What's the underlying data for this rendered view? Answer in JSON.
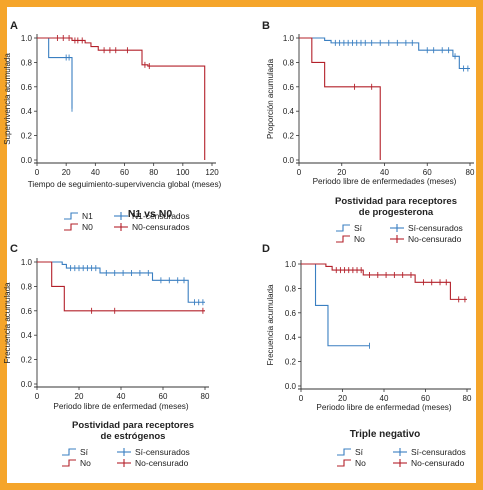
{
  "colors": {
    "frame": "#f5a52a",
    "blue": "#3a7fc1",
    "red": "#b3202a",
    "axis": "#333333"
  },
  "chart_data": [
    {
      "panel": "A",
      "type": "line",
      "title": "N1 vs N0",
      "xlabel": "Tiempo de seguimiento-supervivencia global (meses)",
      "ylabel": "Supervivencia acumulada",
      "xlim": [
        0,
        120
      ],
      "ylim": [
        0,
        1.0
      ],
      "xticks": [
        0,
        20,
        40,
        60,
        80,
        100,
        120
      ],
      "yticks": [
        0.0,
        0.2,
        0.4,
        0.6,
        0.8,
        1.0
      ],
      "series": [
        {
          "name": "N1",
          "color": "#3a7fc1",
          "steps": [
            [
              0,
              1.0
            ],
            [
              8,
              1.0
            ],
            [
              8,
              0.84
            ],
            [
              24,
              0.84
            ],
            [
              24,
              0.42
            ]
          ],
          "censored": [
            [
              20,
              0.84
            ],
            [
              22,
              0.84
            ],
            [
              24,
              0.42
            ]
          ]
        },
        {
          "name": "N0",
          "color": "#b3202a",
          "steps": [
            [
              0,
              1.0
            ],
            [
              24,
              1.0
            ],
            [
              24,
              0.98
            ],
            [
              33,
              0.98
            ],
            [
              33,
              0.96
            ],
            [
              37,
              0.96
            ],
            [
              37,
              0.93
            ],
            [
              42,
              0.93
            ],
            [
              42,
              0.9
            ],
            [
              72,
              0.9
            ],
            [
              72,
              0.78
            ],
            [
              76,
              0.78
            ],
            [
              76,
              0.77
            ],
            [
              115,
              0.77
            ],
            [
              115,
              0.0
            ]
          ],
          "censored": [
            [
              14,
              1.0
            ],
            [
              18,
              1.0
            ],
            [
              22,
              1.0
            ],
            [
              26,
              0.98
            ],
            [
              28,
              0.98
            ],
            [
              31,
              0.98
            ],
            [
              46,
              0.9
            ],
            [
              50,
              0.9
            ],
            [
              54,
              0.9
            ],
            [
              62,
              0.9
            ],
            [
              74,
              0.78
            ],
            [
              77,
              0.77
            ]
          ]
        }
      ],
      "legend": [
        {
          "label": "N1",
          "kind": "line",
          "color": "#3a7fc1"
        },
        {
          "label": "N1-censurados",
          "kind": "cross",
          "color": "#3a7fc1"
        },
        {
          "label": "N0",
          "kind": "line",
          "color": "#b3202a"
        },
        {
          "label": "N0-censurados",
          "kind": "cross",
          "color": "#b3202a"
        }
      ]
    },
    {
      "panel": "B",
      "type": "line",
      "title": "Postividad para receptores de progesterona",
      "xlabel": "Periodo libre de enfermedades (meses)",
      "ylabel": "Proporción acumulada",
      "xlim": [
        0,
        80
      ],
      "ylim": [
        0,
        1.0
      ],
      "xticks": [
        0,
        20,
        40,
        60,
        80
      ],
      "yticks": [
        0.0,
        0.2,
        0.4,
        0.6,
        0.8,
        1.0
      ],
      "series": [
        {
          "name": "Sí",
          "color": "#3a7fc1",
          "steps": [
            [
              0,
              1.0
            ],
            [
              12,
              1.0
            ],
            [
              12,
              0.98
            ],
            [
              15,
              0.98
            ],
            [
              15,
              0.96
            ],
            [
              56,
              0.96
            ],
            [
              56,
              0.9
            ],
            [
              72,
              0.9
            ],
            [
              72,
              0.85
            ],
            [
              75,
              0.85
            ],
            [
              75,
              0.75
            ],
            [
              80,
              0.75
            ]
          ],
          "censored": [
            [
              17,
              0.96
            ],
            [
              19,
              0.96
            ],
            [
              21,
              0.96
            ],
            [
              23,
              0.96
            ],
            [
              25,
              0.96
            ],
            [
              27,
              0.96
            ],
            [
              29,
              0.96
            ],
            [
              31,
              0.96
            ],
            [
              34,
              0.96
            ],
            [
              38,
              0.96
            ],
            [
              42,
              0.96
            ],
            [
              46,
              0.96
            ],
            [
              50,
              0.96
            ],
            [
              53,
              0.96
            ],
            [
              60,
              0.9
            ],
            [
              63,
              0.9
            ],
            [
              67,
              0.9
            ],
            [
              70,
              0.9
            ],
            [
              73,
              0.85
            ],
            [
              77,
              0.75
            ],
            [
              79,
              0.75
            ]
          ]
        },
        {
          "name": "No",
          "color": "#b3202a",
          "steps": [
            [
              0,
              1.0
            ],
            [
              6,
              1.0
            ],
            [
              6,
              0.8
            ],
            [
              12,
              0.8
            ],
            [
              12,
              0.6
            ],
            [
              38,
              0.6
            ],
            [
              38,
              0.0
            ]
          ],
          "censored": [
            [
              26,
              0.6
            ],
            [
              34,
              0.6
            ]
          ]
        }
      ],
      "legend": [
        {
          "label": "Sí",
          "kind": "line",
          "color": "#3a7fc1"
        },
        {
          "label": "Sí-censurados",
          "kind": "cross",
          "color": "#3a7fc1"
        },
        {
          "label": "No",
          "kind": "line",
          "color": "#b3202a"
        },
        {
          "label": "No-censurado",
          "kind": "cross",
          "color": "#b3202a"
        }
      ]
    },
    {
      "panel": "C",
      "type": "line",
      "title": "Postividad para receptores de estrógenos",
      "xlabel": "Periodo libre de enfermedad (meses)",
      "ylabel": "Frecuencia acumulada",
      "xlim": [
        0,
        80
      ],
      "ylim": [
        0,
        1.0
      ],
      "xticks": [
        0,
        20,
        40,
        60,
        80
      ],
      "yticks": [
        0.0,
        0.2,
        0.4,
        0.6,
        0.8,
        1.0
      ],
      "series": [
        {
          "name": "Sí",
          "color": "#3a7fc1",
          "steps": [
            [
              0,
              1.0
            ],
            [
              12,
              1.0
            ],
            [
              12,
              0.98
            ],
            [
              14,
              0.98
            ],
            [
              14,
              0.95
            ],
            [
              30,
              0.95
            ],
            [
              30,
              0.91
            ],
            [
              55,
              0.91
            ],
            [
              55,
              0.85
            ],
            [
              72,
              0.85
            ],
            [
              72,
              0.67
            ],
            [
              80,
              0.67
            ]
          ],
          "censored": [
            [
              16,
              0.95
            ],
            [
              18,
              0.95
            ],
            [
              20,
              0.95
            ],
            [
              22,
              0.95
            ],
            [
              24,
              0.95
            ],
            [
              26,
              0.95
            ],
            [
              28,
              0.95
            ],
            [
              33,
              0.91
            ],
            [
              37,
              0.91
            ],
            [
              41,
              0.91
            ],
            [
              45,
              0.91
            ],
            [
              49,
              0.91
            ],
            [
              53,
              0.91
            ],
            [
              59,
              0.85
            ],
            [
              63,
              0.85
            ],
            [
              67,
              0.85
            ],
            [
              70,
              0.85
            ],
            [
              75,
              0.67
            ],
            [
              77,
              0.67
            ],
            [
              79,
              0.67
            ]
          ]
        },
        {
          "name": "No",
          "color": "#b3202a",
          "steps": [
            [
              0,
              1.0
            ],
            [
              7,
              1.0
            ],
            [
              7,
              0.8
            ],
            [
              13,
              0.8
            ],
            [
              13,
              0.6
            ],
            [
              80,
              0.6
            ]
          ],
          "censored": [
            [
              26,
              0.6
            ],
            [
              37,
              0.6
            ],
            [
              79,
              0.6
            ]
          ]
        }
      ],
      "legend": [
        {
          "label": "Sí",
          "kind": "line",
          "color": "#3a7fc1"
        },
        {
          "label": "Sí-censurados",
          "kind": "cross",
          "color": "#3a7fc1"
        },
        {
          "label": "No",
          "kind": "line",
          "color": "#b3202a"
        },
        {
          "label": "No-censurado",
          "kind": "cross",
          "color": "#b3202a"
        }
      ]
    },
    {
      "panel": "D",
      "type": "line",
      "title": "Triple negativo",
      "xlabel": "Periodo libre de enfermedad (meses)",
      "ylabel": "Frecuencia acumulada",
      "xlim": [
        0,
        80
      ],
      "ylim": [
        0,
        1.0
      ],
      "xticks": [
        0,
        20,
        40,
        60,
        80
      ],
      "yticks": [
        0.0,
        0.2,
        0.4,
        0.6,
        0.8,
        1.0
      ],
      "series": [
        {
          "name": "Sí",
          "color": "#3a7fc1",
          "steps": [
            [
              0,
              1.0
            ],
            [
              7,
              1.0
            ],
            [
              7,
              0.66
            ],
            [
              13,
              0.66
            ],
            [
              13,
              0.33
            ],
            [
              33,
              0.33
            ]
          ],
          "censored": [
            [
              33,
              0.33
            ]
          ]
        },
        {
          "name": "No",
          "color": "#b3202a",
          "steps": [
            [
              0,
              1.0
            ],
            [
              12,
              1.0
            ],
            [
              12,
              0.98
            ],
            [
              15,
              0.98
            ],
            [
              15,
              0.95
            ],
            [
              30,
              0.95
            ],
            [
              30,
              0.91
            ],
            [
              55,
              0.91
            ],
            [
              55,
              0.85
            ],
            [
              72,
              0.85
            ],
            [
              72,
              0.71
            ],
            [
              80,
              0.71
            ]
          ],
          "censored": [
            [
              17,
              0.95
            ],
            [
              19,
              0.95
            ],
            [
              21,
              0.95
            ],
            [
              23,
              0.95
            ],
            [
              25,
              0.95
            ],
            [
              27,
              0.95
            ],
            [
              29,
              0.95
            ],
            [
              33,
              0.91
            ],
            [
              37,
              0.91
            ],
            [
              41,
              0.91
            ],
            [
              45,
              0.91
            ],
            [
              49,
              0.91
            ],
            [
              53,
              0.91
            ],
            [
              59,
              0.85
            ],
            [
              63,
              0.85
            ],
            [
              67,
              0.85
            ],
            [
              70,
              0.85
            ],
            [
              76,
              0.71
            ],
            [
              79,
              0.71
            ]
          ]
        }
      ],
      "legend": [
        {
          "label": "Sí",
          "kind": "line",
          "color": "#3a7fc1"
        },
        {
          "label": "Sí-censurados",
          "kind": "cross",
          "color": "#3a7fc1"
        },
        {
          "label": "No",
          "kind": "line",
          "color": "#b3202a"
        },
        {
          "label": "No-censurado",
          "kind": "cross",
          "color": "#b3202a"
        }
      ]
    }
  ]
}
